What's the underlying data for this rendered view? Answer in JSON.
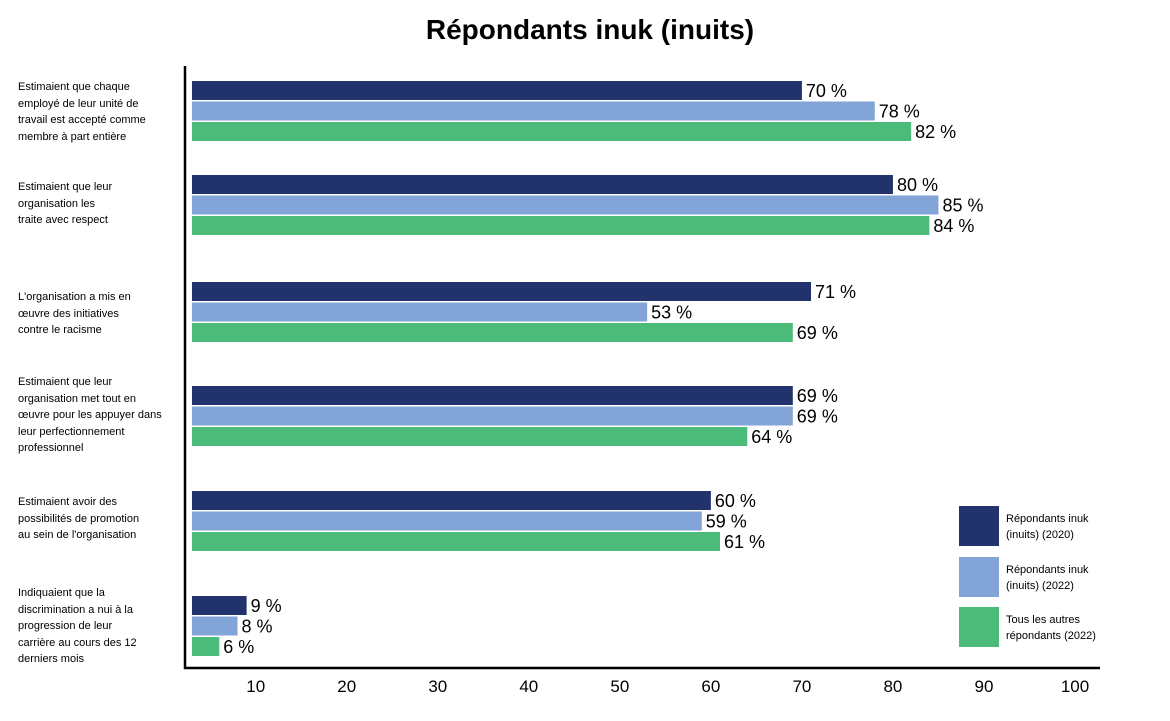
{
  "chart_data": {
    "type": "bar",
    "orientation": "horizontal",
    "title": "Répondants inuk (inuits)",
    "xlabel": "",
    "ylabel": "",
    "xlim": [
      3,
      100
    ],
    "xticks": [
      10,
      20,
      30,
      40,
      50,
      60,
      70,
      80,
      90,
      100
    ],
    "value_suffix": " %",
    "grid": false,
    "legend_position": "bottom-right",
    "categories": [
      "Estimaient que chaque employé de leur unité de travail est accepté comme membre à part entière",
      "Estimaient que leur organisation les traite avec respect",
      "L'organisation a mis en œuvre des initiatives contre le racisme",
      "Estimaient que leur organisation met tout en œuvre pour les appuyer dans leur perfectionnement professionnel",
      "Estimaient avoir des possibilités de promotion au sein de l'organisation",
      "Indiquaient que la discrimination a nui à la progression de leur carrière au cours des 12 derniers mois"
    ],
    "category_lines": [
      [
        "Estimaient que chaque",
        "employé de leur unité de",
        "travail est accepté comme",
        "membre à part entière"
      ],
      [
        "Estimaient que leur",
        "organisation les",
        "traite avec respect"
      ],
      [
        "L'organisation a mis en",
        "œuvre des initiatives",
        "contre le racisme"
      ],
      [
        "Estimaient que leur",
        "organisation met tout en",
        "œuvre pour les appuyer dans",
        "leur perfectionnement",
        "professionnel"
      ],
      [
        "Estimaient avoir des",
        "possibilités de promotion",
        "au sein de l'organisation"
      ],
      [
        "Indiquaient que la",
        "discrimination a nui à la",
        "progression de leur",
        "carrière au cours des 12",
        "derniers mois"
      ]
    ],
    "series": [
      {
        "name": "Répondants inuk (inuits) (2020)",
        "color": "#22336b",
        "values": [
          70,
          80,
          71,
          69,
          60,
          9
        ]
      },
      {
        "name": "Répondants inuk (inuits) (2022)",
        "color": "#82a4d6",
        "values": [
          78,
          85,
          53,
          69,
          59,
          8
        ]
      },
      {
        "name": "Tous les autres répondants (2022)",
        "color": "#4cba78",
        "values": [
          82,
          84,
          69,
          64,
          61,
          6
        ]
      }
    ]
  },
  "legend": {
    "items": [
      {
        "line1": "Répondants inuk",
        "line2": "(inuits) (2020)",
        "color": "#22336b"
      },
      {
        "line1": "Répondants inuk",
        "line2": "(inuits) (2022)",
        "color": "#82a4d6"
      },
      {
        "line1": "Tous les autres",
        "line2": "répondants (2022)",
        "color": "#4cba78"
      }
    ]
  }
}
